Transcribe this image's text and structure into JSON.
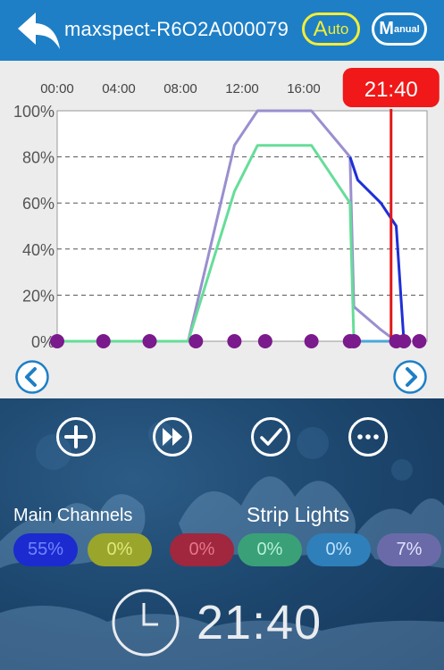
{
  "header": {
    "title": "maxspect-R6O2A000079",
    "auto_label": {
      "big": "A",
      "small": "uto"
    },
    "manual_label": {
      "big": "M",
      "small": "anual"
    }
  },
  "chart_data": {
    "type": "line",
    "x_ticks": [
      "00:00",
      "04:00",
      "08:00",
      "12:00",
      "16:00"
    ],
    "y_ticks": [
      "100%",
      "80%",
      "60%",
      "40%",
      "20%",
      "0%"
    ],
    "ylim": [
      0,
      100
    ],
    "xlim": [
      "00:00",
      "24:00"
    ],
    "grid": "dashed horizontal",
    "current_time_label": "21:40",
    "current_time": "21:40",
    "series": [
      {
        "color": "#9a8fcf",
        "points": [
          [
            "00:00",
            0
          ],
          [
            "08:30",
            0
          ],
          [
            "11:30",
            85
          ],
          [
            "13:00",
            100
          ],
          [
            "16:30",
            100
          ],
          [
            "19:00",
            80
          ],
          [
            "19:15",
            15
          ],
          [
            "21:00",
            5
          ],
          [
            "22:00",
            0
          ]
        ]
      },
      {
        "color": "#66dd99",
        "points": [
          [
            "00:00",
            0
          ],
          [
            "08:30",
            0
          ],
          [
            "11:30",
            65
          ],
          [
            "13:00",
            85
          ],
          [
            "16:30",
            85
          ],
          [
            "19:00",
            60
          ],
          [
            "19:15",
            0
          ],
          [
            "22:00",
            0
          ]
        ]
      },
      {
        "color": "#1e2fd6",
        "points": [
          [
            "19:00",
            80
          ],
          [
            "19:30",
            70
          ],
          [
            "21:00",
            60
          ],
          [
            "22:00",
            50
          ],
          [
            "22:30",
            0
          ]
        ]
      },
      {
        "color": "#4aa8d8",
        "points": [
          [
            "19:15",
            0
          ],
          [
            "22:00",
            0
          ]
        ]
      }
    ],
    "points": [
      [
        "00:00",
        0
      ],
      [
        "03:00",
        0
      ],
      [
        "06:00",
        0
      ],
      [
        "09:00",
        0
      ],
      [
        "11:30",
        0
      ],
      [
        "13:30",
        0
      ],
      [
        "16:30",
        0
      ],
      [
        "19:00",
        0
      ],
      [
        "19:15",
        0
      ],
      [
        "22:00",
        0
      ],
      [
        "22:30",
        0
      ],
      [
        "23:30",
        0
      ]
    ]
  },
  "actions": {
    "add": "add-button",
    "fast_forward": "fast-forward-button",
    "confirm": "confirm-button",
    "more": "more-button"
  },
  "channels": {
    "main_label": "Main Channels",
    "strip_label": "Strip Lights",
    "pills": [
      {
        "value": "55%",
        "bg": "#1b2bd0",
        "fg": "#6f86ff"
      },
      {
        "value": "0%",
        "bg": "#9aa52c",
        "fg": "#dfe87a"
      },
      {
        "value": "0%",
        "bg": "#a0273d",
        "fg": "#e8758b"
      },
      {
        "value": "0%",
        "bg": "#3aa078",
        "fg": "#b5f0d8"
      },
      {
        "value": "0%",
        "bg": "#2e7fba",
        "fg": "#bfe2ff"
      },
      {
        "value": "7%",
        "bg": "#6b6aa8",
        "fg": "#e3e2ff"
      }
    ]
  },
  "clock": {
    "time": "21:40"
  }
}
